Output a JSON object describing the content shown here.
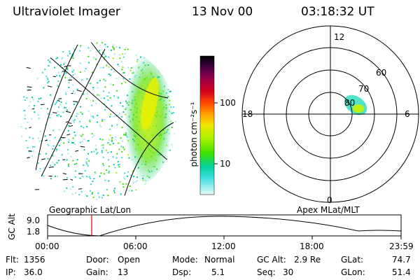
{
  "header": {
    "title": "Ultraviolet Imager",
    "date": "13 Nov 00",
    "time": "03:18:32 UT"
  },
  "left_panel": {
    "caption": "Geographic Lat/Lon",
    "description": "Auroral UV emission imaged on geographic grid"
  },
  "colorbar": {
    "unit_label": "photon cm⁻²s⁻¹",
    "ticks": [
      "100",
      "10"
    ],
    "colors": [
      "#000000",
      "#2b0030",
      "#5a0058",
      "#8c0048",
      "#c8002a",
      "#ff2a00",
      "#ff7a00",
      "#ffc800",
      "#e8f000",
      "#a0f000",
      "#40e000",
      "#00c890",
      "#00d0c8",
      "#40e0e8",
      "#a0f0f0",
      "#ddf6f6"
    ]
  },
  "right_panel": {
    "caption": "Apex MLat/MLT",
    "mlt_labels": {
      "top": "12",
      "bottom": "0",
      "left": "18",
      "right": "6"
    },
    "lat_labels": [
      "60",
      "70",
      "80"
    ]
  },
  "altitude_panel": {
    "y_label": "GC Alt",
    "y_ticks": [
      "9.0",
      "1.8"
    ],
    "x_ticks": [
      "00:00",
      "06:00",
      "12:00",
      "18:00",
      "23:59"
    ],
    "current_time_fraction": 0.138
  },
  "status": {
    "flt_label": "Flt:",
    "flt_value": "1356",
    "ip_label": "IP:",
    "ip_value": "36.0",
    "door_label": "Door:",
    "door_value": "Open",
    "gain_label": "Gain:",
    "gain_value": "13",
    "mode_label": "Mode:",
    "mode_value": "Normal",
    "dsp_label": "Dsp:",
    "dsp_value": "5.1",
    "gcalt_label": "GC Alt:",
    "gcalt_value": "2.9 Re",
    "seq_label": "Seq:",
    "seq_value": "30",
    "glat_label": "GLat:",
    "glat_value": "74.7",
    "glon_label": "GLon:",
    "glon_value": "51.4"
  }
}
